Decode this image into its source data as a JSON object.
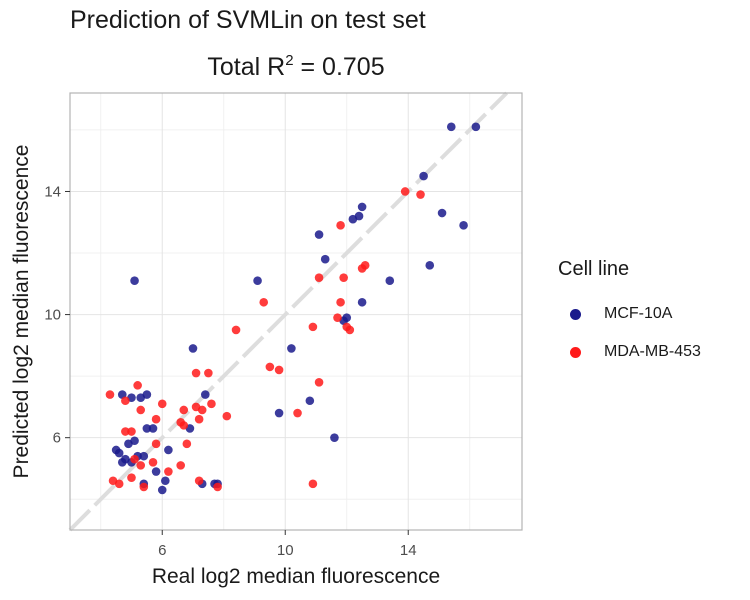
{
  "chart_data": {
    "type": "scatter",
    "title": "Prediction of SVMLin on test set",
    "subtitle": {
      "prefix": "Total R",
      "sup": "2",
      "suffix": " = 0.705"
    },
    "xlabel": "Real log2 median fluorescence",
    "ylabel": "Predicted log2 median fluorescence",
    "xlim": [
      3,
      17.7
    ],
    "ylim": [
      3,
      17.2
    ],
    "xticks": [
      6,
      10,
      14
    ],
    "yticks": [
      6,
      10,
      14
    ],
    "grid": true,
    "reference_line": "y = x",
    "legend_title": "Cell line",
    "legend_position": "right",
    "series": [
      {
        "name": "MCF-10A",
        "color": "#1a1a8c",
        "points": [
          [
            15.4,
            16.1
          ],
          [
            16.2,
            16.1
          ],
          [
            14.5,
            14.5
          ],
          [
            12.5,
            13.5
          ],
          [
            12.2,
            13.1
          ],
          [
            12.4,
            13.2
          ],
          [
            15.1,
            13.3
          ],
          [
            15.8,
            12.9
          ],
          [
            11.1,
            12.6
          ],
          [
            11.3,
            11.8
          ],
          [
            14.7,
            11.6
          ],
          [
            13.4,
            11.1
          ],
          [
            9.1,
            11.1
          ],
          [
            5.1,
            11.1
          ],
          [
            12.5,
            10.4
          ],
          [
            12.0,
            9.9
          ],
          [
            11.9,
            9.8
          ],
          [
            10.2,
            8.9
          ],
          [
            7.0,
            8.9
          ],
          [
            7.4,
            7.4
          ],
          [
            10.8,
            7.2
          ],
          [
            9.8,
            6.8
          ],
          [
            11.6,
            6.0
          ],
          [
            4.7,
            7.4
          ],
          [
            5.0,
            7.3
          ],
          [
            5.3,
            7.3
          ],
          [
            5.5,
            7.4
          ],
          [
            6.9,
            6.3
          ],
          [
            5.7,
            6.3
          ],
          [
            5.5,
            6.3
          ],
          [
            4.9,
            5.8
          ],
          [
            5.1,
            5.9
          ],
          [
            6.2,
            5.6
          ],
          [
            4.5,
            5.6
          ],
          [
            4.6,
            5.5
          ],
          [
            4.7,
            5.2
          ],
          [
            4.8,
            5.3
          ],
          [
            5.0,
            5.2
          ],
          [
            5.2,
            5.4
          ],
          [
            5.4,
            5.4
          ],
          [
            5.8,
            4.9
          ],
          [
            6.1,
            4.6
          ],
          [
            5.4,
            4.5
          ],
          [
            7.3,
            4.5
          ],
          [
            7.7,
            4.5
          ],
          [
            7.8,
            4.5
          ],
          [
            6.0,
            4.3
          ]
        ]
      },
      {
        "name": "MDA-MB-453",
        "color": "#ff1a1a",
        "points": [
          [
            13.9,
            14.0
          ],
          [
            14.4,
            13.9
          ],
          [
            11.8,
            12.9
          ],
          [
            12.6,
            11.6
          ],
          [
            12.5,
            11.5
          ],
          [
            11.1,
            11.2
          ],
          [
            11.9,
            11.2
          ],
          [
            9.3,
            10.4
          ],
          [
            11.8,
            10.4
          ],
          [
            11.7,
            9.9
          ],
          [
            12.0,
            9.6
          ],
          [
            12.1,
            9.5
          ],
          [
            10.9,
            9.6
          ],
          [
            8.4,
            9.5
          ],
          [
            9.5,
            8.3
          ],
          [
            9.8,
            8.2
          ],
          [
            7.5,
            8.1
          ],
          [
            7.1,
            8.1
          ],
          [
            11.1,
            7.8
          ],
          [
            7.6,
            7.1
          ],
          [
            4.3,
            7.4
          ],
          [
            4.8,
            7.2
          ],
          [
            5.2,
            7.7
          ],
          [
            6.0,
            7.1
          ],
          [
            5.3,
            6.9
          ],
          [
            6.7,
            6.9
          ],
          [
            7.1,
            7.0
          ],
          [
            7.3,
            6.9
          ],
          [
            8.1,
            6.7
          ],
          [
            10.4,
            6.8
          ],
          [
            7.2,
            6.6
          ],
          [
            5.8,
            6.6
          ],
          [
            6.6,
            6.5
          ],
          [
            6.7,
            6.4
          ],
          [
            4.8,
            6.2
          ],
          [
            5.0,
            6.2
          ],
          [
            5.8,
            5.8
          ],
          [
            6.8,
            5.8
          ],
          [
            5.1,
            5.3
          ],
          [
            5.3,
            5.1
          ],
          [
            5.7,
            5.2
          ],
          [
            6.6,
            5.1
          ],
          [
            6.2,
            4.9
          ],
          [
            5.0,
            4.7
          ],
          [
            4.4,
            4.6
          ],
          [
            4.6,
            4.5
          ],
          [
            5.4,
            4.4
          ],
          [
            7.2,
            4.6
          ],
          [
            7.8,
            4.4
          ],
          [
            10.9,
            4.5
          ]
        ]
      }
    ]
  }
}
